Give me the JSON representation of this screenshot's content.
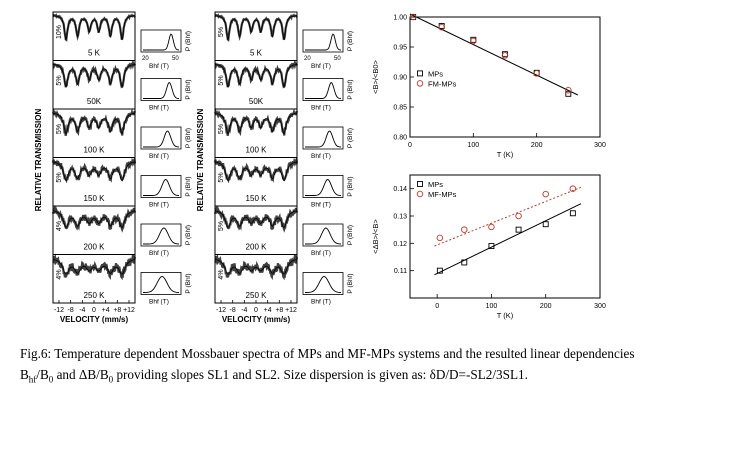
{
  "mossbauer": {
    "panel_a": {
      "temperatures": [
        "5 K",
        "50K",
        "100 K",
        "150 K",
        "200 K",
        "250 K"
      ],
      "percent_labels": [
        "10%",
        "5%",
        "5%",
        "5%",
        "4%",
        "4%"
      ]
    },
    "panel_b": {
      "temperatures": [
        "5 K",
        "50K",
        "100 K",
        "150 K",
        "200 K",
        "250 K"
      ],
      "percent_labels": [
        "5%",
        "5%",
        "5%",
        "5%",
        "5%",
        "4%"
      ]
    },
    "ylabel": "RELATIVE TRANSMISSION",
    "xlabel": "VELOCITY (mm/s)",
    "x_ticks": [
      "-12",
      "-8",
      "-4",
      "0",
      "+4",
      "+8",
      "+12"
    ],
    "dist_label": "P (Bhf)",
    "dist_xlabel": "Bhf (T)",
    "dist_ticks": [
      "20",
      "50"
    ]
  },
  "chart_data": [
    {
      "type": "scatter",
      "xlabel": "T (K)",
      "ylabel": "<B>/<B0>",
      "xlim": [
        0,
        300
      ],
      "ylim": [
        0.8,
        1.0
      ],
      "x_ticks": [
        "0",
        "100",
        "200",
        "300"
      ],
      "y_ticks": [
        "0.80",
        "0.85",
        "0.90",
        "0.95",
        "1.00"
      ],
      "legend_position": "middle-left",
      "series": [
        {
          "name": "MPs",
          "marker": "square",
          "color": "#000000",
          "x": [
            5,
            50,
            100,
            150,
            200,
            250
          ],
          "y": [
            1.0,
            0.985,
            0.962,
            0.938,
            0.907,
            0.872
          ]
        },
        {
          "name": "FM-MPs",
          "marker": "circle",
          "color": "#c0392b",
          "x": [
            5,
            50,
            100,
            150,
            200,
            250
          ],
          "y": [
            1.0,
            0.983,
            0.96,
            0.936,
            0.906,
            0.878
          ]
        }
      ],
      "fit": {
        "x": [
          0,
          265
        ],
        "y": [
          1.005,
          0.87
        ],
        "color": "#000000"
      }
    },
    {
      "type": "scatter",
      "xlabel": "T (K)",
      "ylabel": "<ΔB>/<B>",
      "xlim": [
        -50,
        300
      ],
      "ylim": [
        0.1,
        0.145
      ],
      "x_ticks": [
        "0",
        "100",
        "200",
        "300"
      ],
      "y_ticks": [
        "0.11",
        "0.12",
        "0.13",
        "0.14"
      ],
      "legend_position": "top-left",
      "series": [
        {
          "name": "MPs",
          "marker": "square",
          "color": "#000000",
          "x": [
            5,
            50,
            100,
            150,
            200,
            250
          ],
          "y": [
            0.11,
            0.113,
            0.119,
            0.125,
            0.127,
            0.131
          ]
        },
        {
          "name": "MF-MPs",
          "marker": "circle",
          "color": "#c0392b",
          "x": [
            5,
            50,
            100,
            150,
            200,
            250
          ],
          "y": [
            0.122,
            0.125,
            0.126,
            0.13,
            0.138,
            0.14
          ]
        }
      ],
      "fits": [
        {
          "series": "MPs",
          "x": [
            -5,
            265
          ],
          "y": [
            0.1085,
            0.1345
          ],
          "style": "solid",
          "color": "#000000"
        },
        {
          "series": "MF-MPs",
          "x": [
            -5,
            265
          ],
          "y": [
            0.119,
            0.1405
          ],
          "style": "dotted",
          "color": "#c0392b"
        }
      ]
    }
  ],
  "caption": {
    "line1": "Fig.6: Temperature dependent Mossbauer spectra of MPs and MF-MPs systems and the resulted linear dependencies",
    "line2_pre": "B",
    "line2_sub1": "hf",
    "line2_mid1": "/B",
    "line2_sub2": "0",
    "line2_mid2": " and ΔB/B",
    "line2_sub3": "0",
    "line2_post": " providing slopes SL1 and SL2. Size dispersion is given as: δD/D=-SL2/3SL1."
  }
}
